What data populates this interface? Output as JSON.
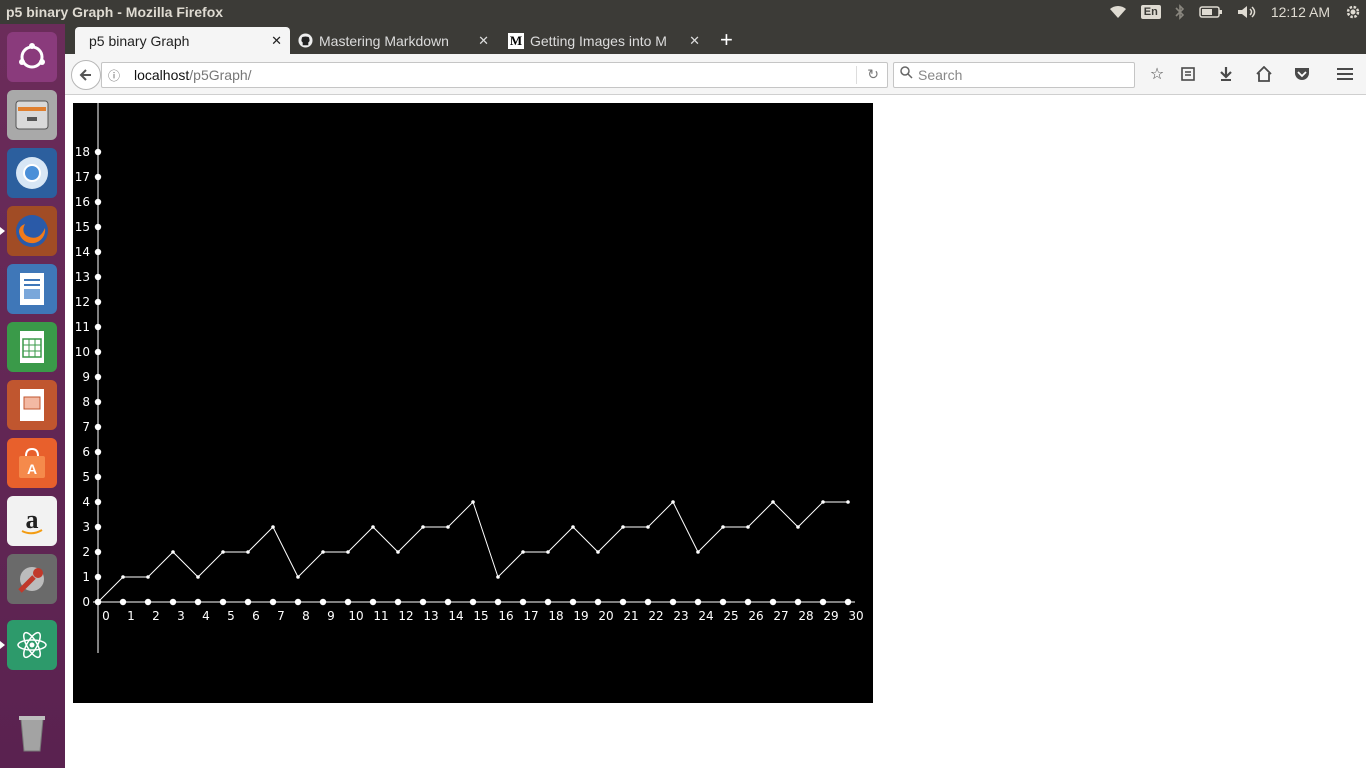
{
  "system": {
    "window_title": "p5 binary Graph - Mozilla Firefox",
    "keyboard_layout": "En",
    "clock": "12:12 AM",
    "tray_icons": [
      "wifi-icon",
      "keyboard-layout",
      "bluetooth-icon",
      "battery-icon",
      "volume-icon",
      "clock",
      "settings-gear-icon"
    ]
  },
  "launcher": {
    "items": [
      {
        "name": "ubuntu-dash",
        "icon": "ubuntu-logo-icon",
        "color": "#8a3b7c"
      },
      {
        "name": "files",
        "icon": "file-cabinet-icon",
        "color": "#6b6b6b"
      },
      {
        "name": "chromium",
        "icon": "chromium-icon",
        "color": "#3a6fb0"
      },
      {
        "name": "firefox",
        "icon": "firefox-icon",
        "color": "#e66000",
        "active": true
      },
      {
        "name": "libreoffice-writer",
        "icon": "document-icon",
        "color": "#2a6db5"
      },
      {
        "name": "libreoffice-calc",
        "icon": "spreadsheet-icon",
        "color": "#2d8a3a"
      },
      {
        "name": "libreoffice-impress",
        "icon": "presentation-icon",
        "color": "#b5492a"
      },
      {
        "name": "software-center",
        "icon": "shopping-bag-icon",
        "color": "#e8602c"
      },
      {
        "name": "amazon",
        "icon": "amazon-icon",
        "color": "#ffffff"
      },
      {
        "name": "system-settings",
        "icon": "wrench-icon",
        "color": "#c0392b"
      },
      {
        "name": "atom",
        "icon": "atom-icon",
        "color": "#2d9a6b"
      },
      {
        "name": "trash",
        "icon": "trash-icon",
        "color": "#777777"
      }
    ]
  },
  "browser": {
    "tabs": [
      {
        "label": "p5 binary Graph",
        "active": true,
        "favicon": ""
      },
      {
        "label": "Mastering Markdown",
        "active": false,
        "favicon": "github-icon"
      },
      {
        "label": "Getting Images into M",
        "active": false,
        "favicon": "medium-icon"
      }
    ],
    "new_tab_label": "+",
    "url": {
      "host": "localhost",
      "path": "/p5Graph/"
    },
    "search_placeholder": "Search"
  },
  "chart_data": {
    "type": "line",
    "x": [
      0,
      1,
      2,
      3,
      4,
      5,
      6,
      7,
      8,
      9,
      10,
      11,
      12,
      13,
      14,
      15,
      16,
      17,
      18,
      19,
      20,
      21,
      22,
      23,
      24,
      25,
      26,
      27,
      28,
      29,
      30
    ],
    "y": [
      0,
      1,
      1,
      2,
      1,
      2,
      2,
      3,
      1,
      2,
      2,
      3,
      2,
      3,
      3,
      4,
      1,
      2,
      2,
      3,
      2,
      3,
      3,
      4,
      2,
      3,
      3,
      4,
      3,
      4,
      4
    ],
    "xlim": [
      0,
      30
    ],
    "ylim": [
      0,
      18
    ],
    "xticks": [
      "0",
      "1",
      "2",
      "3",
      "4",
      "5",
      "6",
      "7",
      "8",
      "9",
      "10",
      "11",
      "12",
      "13",
      "14",
      "15",
      "16",
      "17",
      "18",
      "19",
      "20",
      "21",
      "22",
      "23",
      "24",
      "25",
      "26",
      "27",
      "28",
      "29",
      "30"
    ],
    "yticks": [
      "0",
      "1",
      "2",
      "3",
      "4",
      "5",
      "6",
      "7",
      "8",
      "9",
      "10",
      "11",
      "12",
      "13",
      "14",
      "15",
      "16",
      "17",
      "18"
    ],
    "title": "",
    "xlabel": "",
    "ylabel": "",
    "background": "#000000",
    "line_color": "#ffffff",
    "grid": false
  }
}
